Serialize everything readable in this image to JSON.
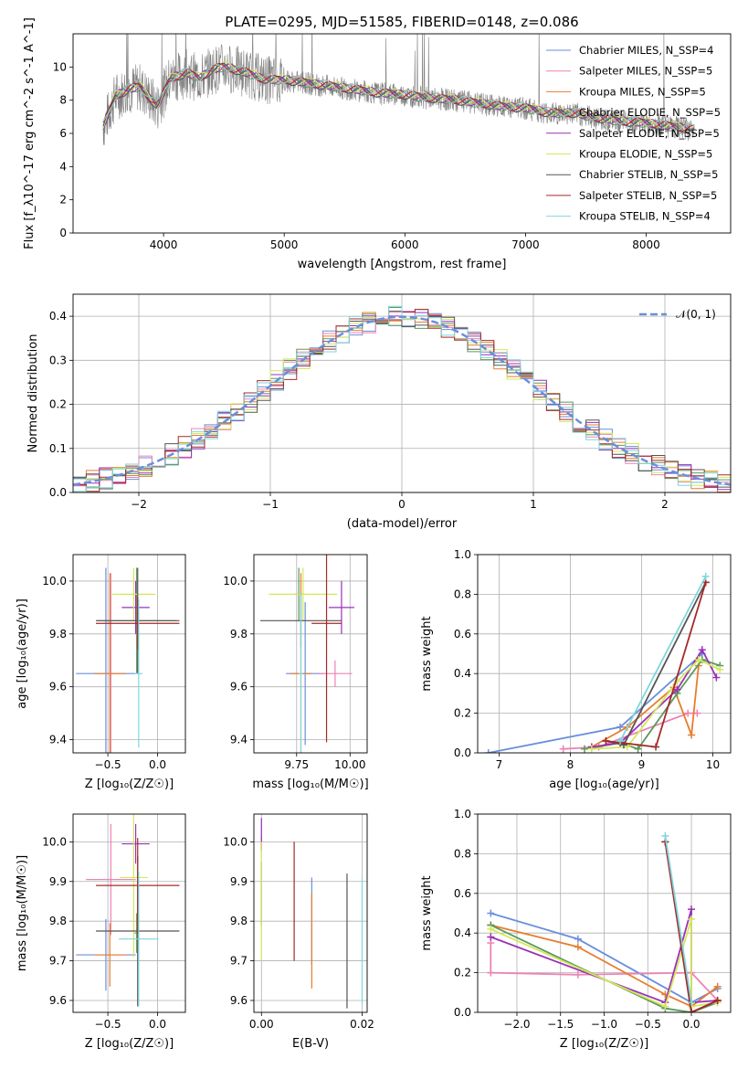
{
  "title": "PLATE=0295, MJD=51585, FIBERID=0148, z=0.086",
  "colors": {
    "chabrier_miles": "#6a8fdc",
    "salpeter_miles": "#ee82b4",
    "kroupa_miles": "#e77d2e",
    "chabrier_elodie": "#5b9a5b",
    "salpeter_elodie": "#9b30b8",
    "kroupa_elodie": "#d4e85a",
    "chabrier_stelib": "#555555",
    "salpeter_stelib": "#a52a2a",
    "kroupa_stelib": "#7fd6dc",
    "grid": "#b0b0b0",
    "data_spectrum": "#808080"
  },
  "chart_data": [
    {
      "id": "spectrum",
      "type": "line",
      "xlabel": "wavelength [Angstrom, rest frame]",
      "ylabel": "Flux [f_λ10^-17 erg cm^-2 s^-1 A^-1]",
      "xlim": [
        3250,
        8700
      ],
      "ylim": [
        0,
        12
      ],
      "xticks": [
        4000,
        5000,
        6000,
        7000,
        8000
      ],
      "yticks": [
        0,
        2,
        4,
        6,
        8,
        10
      ],
      "grid": false,
      "legend_position": "top-right",
      "data_trace": {
        "x": [
          3500,
          3600,
          3700,
          3800,
          3900,
          3950,
          4000,
          4050,
          4100,
          4200,
          4300,
          4400,
          4500,
          4600,
          4700,
          4800,
          4900,
          5000,
          5200,
          5400,
          5600,
          5800,
          6000,
          6200,
          6400,
          6600,
          6800,
          7000,
          7200,
          7400,
          7600,
          7800,
          8000,
          8200,
          8400
        ],
        "y": [
          6.4,
          8.2,
          8.6,
          8.8,
          8.0,
          7.6,
          8.4,
          9.2,
          9.4,
          9.6,
          9.3,
          9.8,
          10.0,
          9.8,
          9.6,
          9.3,
          9.2,
          9.2,
          9.0,
          8.8,
          8.6,
          8.4,
          8.3,
          8.1,
          8.0,
          7.8,
          7.6,
          7.5,
          7.2,
          7.2,
          6.9,
          6.7,
          6.6,
          6.4,
          6.2
        ]
      },
      "series": [
        {
          "name": "Chabrier MILES, N_SSP=4",
          "color_key": "chabrier_miles"
        },
        {
          "name": "Salpeter MILES, N_SSP=5",
          "color_key": "salpeter_miles"
        },
        {
          "name": "Kroupa MILES, N_SSP=5",
          "color_key": "kroupa_miles"
        },
        {
          "name": "Chabrier ELODIE, N_SSP=5",
          "color_key": "chabrier_elodie"
        },
        {
          "name": "Salpeter ELODIE, N_SSP=5",
          "color_key": "salpeter_elodie"
        },
        {
          "name": "Kroupa ELODIE, N_SSP=5",
          "color_key": "kroupa_elodie"
        },
        {
          "name": "Chabrier STELIB, N_SSP=5",
          "color_key": "chabrier_stelib"
        },
        {
          "name": "Salpeter STELIB, N_SSP=5",
          "color_key": "salpeter_stelib"
        },
        {
          "name": "Kroupa STELIB, N_SSP=4",
          "color_key": "kroupa_stelib"
        }
      ]
    },
    {
      "id": "residuals",
      "type": "line",
      "xlabel": "(data-model)/error",
      "ylabel": "Normed distribution",
      "xlim": [
        -2.5,
        2.5
      ],
      "ylim": [
        0,
        0.45
      ],
      "xticks": [
        -2,
        -1,
        0,
        1,
        2
      ],
      "yticks": [
        0.0,
        0.1,
        0.2,
        0.3,
        0.4
      ],
      "grid": true,
      "legend_position": "top-right",
      "legend": "𝒩(0, 1)",
      "bin_width": 0.1
    },
    {
      "id": "age_vs_Z",
      "type": "scatter",
      "xlabel": "Z [log₁₀(Z/Z☉)]",
      "ylabel": "age  [log₁₀(age/yr)]",
      "xlim": [
        -0.85,
        0.28
      ],
      "ylim": [
        9.35,
        10.1
      ],
      "xticks": [
        -0.5,
        0.0
      ],
      "yticks": [
        9.4,
        9.6,
        9.8,
        10.0
      ],
      "grid": true,
      "points": [
        {
          "color_key": "chabrier_miles",
          "x": -0.52,
          "y": 9.65,
          "xerr": 0.3,
          "yerr": 0.4
        },
        {
          "color_key": "salpeter_miles",
          "x": -0.47,
          "y": 9.65,
          "xerr": 0.04,
          "yerr": 0.38
        },
        {
          "color_key": "kroupa_miles",
          "x": -0.48,
          "y": 9.65,
          "xerr": 0.16,
          "yerr": 0.38
        },
        {
          "color_key": "chabrier_elodie",
          "x": -0.21,
          "y": 9.85,
          "xerr": 0.4,
          "yerr": 0.2
        },
        {
          "color_key": "salpeter_elodie",
          "x": -0.22,
          "y": 9.9,
          "xerr": 0.14,
          "yerr": 0.1
        },
        {
          "color_key": "kroupa_elodie",
          "x": -0.24,
          "y": 9.95,
          "xerr": 0.22,
          "yerr": 0.1
        },
        {
          "color_key": "chabrier_stelib",
          "x": -0.2,
          "y": 9.85,
          "xerr": 0.42,
          "yerr": 0.2
        },
        {
          "color_key": "salpeter_stelib",
          "x": -0.2,
          "y": 9.84,
          "xerr": 0.42,
          "yerr": 0.1
        },
        {
          "color_key": "kroupa_stelib",
          "x": -0.19,
          "y": 9.65,
          "xerr": 0.04,
          "yerr": 0.28
        }
      ]
    },
    {
      "id": "age_vs_mass",
      "type": "scatter",
      "xlabel": "mass [log₁₀(M/M☉)]",
      "ylabel": "",
      "xlim": [
        9.55,
        10.08
      ],
      "ylim": [
        9.35,
        10.1
      ],
      "xticks": [
        9.75,
        10.0
      ],
      "yticks": [
        9.4,
        9.6,
        9.8,
        10.0
      ],
      "grid": true,
      "points": [
        {
          "color_key": "chabrier_miles",
          "x": 9.79,
          "y": 9.65,
          "xerr": 0.09,
          "yerr": 0.27
        },
        {
          "color_key": "salpeter_miles",
          "x": 9.93,
          "y": 9.65,
          "xerr": 0.08,
          "yerr": 0.05
        },
        {
          "color_key": "kroupa_miles",
          "x": 9.77,
          "y": 9.65,
          "xerr": 0.05,
          "yerr": 0.38
        },
        {
          "color_key": "chabrier_elodie",
          "x": 9.76,
          "y": 9.95,
          "xerr": 0.02,
          "yerr": 0.1
        },
        {
          "color_key": "salpeter_elodie",
          "x": 9.96,
          "y": 9.9,
          "xerr": 0.06,
          "yerr": 0.1
        },
        {
          "color_key": "kroupa_elodie",
          "x": 9.78,
          "y": 9.95,
          "xerr": 0.16,
          "yerr": 0.1
        },
        {
          "color_key": "chabrier_stelib",
          "x": 9.77,
          "y": 9.85,
          "xerr": 0.19,
          "yerr": 0.1
        },
        {
          "color_key": "salpeter_stelib",
          "x": 9.89,
          "y": 9.84,
          "xerr": 0.07,
          "yerr": 0.45
        },
        {
          "color_key": "kroupa_stelib",
          "x": 9.77,
          "y": 9.65,
          "xerr": 0.01,
          "yerr": 0.3
        }
      ]
    },
    {
      "id": "weight_vs_age",
      "type": "line",
      "xlabel": "age  [log₁₀(age/yr)]",
      "ylabel": "mass weight",
      "xlim": [
        6.7,
        10.25
      ],
      "ylim": [
        0,
        1.0
      ],
      "xticks": [
        7,
        8,
        9,
        10
      ],
      "yticks": [
        0.0,
        0.2,
        0.4,
        0.6,
        0.8,
        1.0
      ],
      "grid": true,
      "series": [
        {
          "color_key": "chabrier_miles",
          "x": [
            6.85,
            8.7,
            9.85
          ],
          "y": [
            0.0,
            0.13,
            0.5
          ]
        },
        {
          "color_key": "salpeter_miles",
          "x": [
            7.9,
            8.4,
            9.65,
            9.78
          ],
          "y": [
            0.02,
            0.03,
            0.2,
            0.2
          ]
        },
        {
          "color_key": "kroupa_miles",
          "x": [
            8.3,
            8.8,
            9.45,
            9.7,
            9.8
          ],
          "y": [
            0.03,
            0.13,
            0.33,
            0.09,
            0.44
          ]
        },
        {
          "color_key": "chabrier_elodie",
          "x": [
            8.2,
            8.7,
            8.95,
            9.5,
            9.85,
            10.1
          ],
          "y": [
            0.02,
            0.05,
            0.02,
            0.3,
            0.47,
            0.44
          ]
        },
        {
          "color_key": "salpeter_elodie",
          "x": [
            8.3,
            8.7,
            9.5,
            9.85,
            10.05
          ],
          "y": [
            0.03,
            0.05,
            0.32,
            0.52,
            0.38
          ]
        },
        {
          "color_key": "kroupa_elodie",
          "x": [
            8.3,
            8.8,
            9.5,
            9.8,
            10.1
          ],
          "y": [
            0.02,
            0.03,
            0.36,
            0.47,
            0.42
          ]
        },
        {
          "color_key": "chabrier_stelib",
          "x": [
            8.5,
            8.75,
            9.9
          ],
          "y": [
            0.06,
            0.04,
            0.86
          ]
        },
        {
          "color_key": "salpeter_stelib",
          "x": [
            8.5,
            9.2,
            9.9
          ],
          "y": [
            0.06,
            0.03,
            0.86
          ]
        },
        {
          "color_key": "kroupa_stelib",
          "x": [
            8.7,
            9.9
          ],
          "y": [
            0.06,
            0.89
          ]
        }
      ]
    },
    {
      "id": "mass_vs_Z",
      "type": "scatter",
      "xlabel": "Z [log₁₀(Z/Z☉)]",
      "ylabel": "mass [log₁₀(M/M☉)]",
      "xlim": [
        -0.85,
        0.28
      ],
      "ylim": [
        9.57,
        10.07
      ],
      "xticks": [
        -0.5,
        0.0
      ],
      "yticks": [
        9.6,
        9.7,
        9.8,
        9.9,
        10.0
      ],
      "grid": true,
      "points": [
        {
          "color_key": "chabrier_miles",
          "x": -0.52,
          "y": 9.715,
          "xerr": 0.3,
          "yerr": 0.09
        },
        {
          "color_key": "salpeter_miles",
          "x": -0.47,
          "y": 9.905,
          "xerr": 0.25,
          "yerr": 0.14
        },
        {
          "color_key": "kroupa_miles",
          "x": -0.48,
          "y": 9.715,
          "xerr": 0.16,
          "yerr": 0.08
        },
        {
          "color_key": "chabrier_elodie",
          "x": -0.21,
          "y": 9.77,
          "xerr": 0.02,
          "yerr": 0.05
        },
        {
          "color_key": "salpeter_elodie",
          "x": -0.22,
          "y": 9.995,
          "xerr": 0.14,
          "yerr": 0.05
        },
        {
          "color_key": "kroupa_elodie",
          "x": -0.24,
          "y": 9.91,
          "xerr": 0.14,
          "yerr": 0.2
        },
        {
          "color_key": "chabrier_stelib",
          "x": -0.2,
          "y": 9.775,
          "xerr": 0.42,
          "yerr": 0.19
        },
        {
          "color_key": "salpeter_stelib",
          "x": -0.2,
          "y": 9.89,
          "xerr": 0.42,
          "yerr": 0.12
        },
        {
          "color_key": "kroupa_stelib",
          "x": -0.19,
          "y": 9.755,
          "xerr": 0.2,
          "yerr": 0.17
        }
      ]
    },
    {
      "id": "mass_vs_EBV",
      "type": "scatter",
      "xlabel": "E(B-V)",
      "ylabel": "",
      "xlim": [
        -0.0015,
        0.021
      ],
      "ylim": [
        9.57,
        10.07
      ],
      "xticks": [
        0.0,
        0.02
      ],
      "yticks": [
        9.6,
        9.7,
        9.8,
        9.9,
        10.0
      ],
      "grid": true,
      "points": [
        {
          "color_key": "chabrier_miles",
          "x": 0.01,
          "y": 9.8,
          "yerr": 0.11
        },
        {
          "color_key": "salpeter_miles",
          "x": 0.0,
          "y": 9.995,
          "yerr": 0.02
        },
        {
          "color_key": "kroupa_miles",
          "x": 0.01,
          "y": 9.75,
          "yerr": 0.12
        },
        {
          "color_key": "chabrier_elodie",
          "x": 0.0,
          "y": 9.87,
          "yerr": 0.08
        },
        {
          "color_key": "salpeter_elodie",
          "x": 0.0,
          "y": 10.02,
          "yerr": 0.04
        },
        {
          "color_key": "kroupa_elodie",
          "x": 0.0,
          "y": 9.85,
          "yerr": 0.15
        },
        {
          "color_key": "chabrier_stelib",
          "x": 0.017,
          "y": 9.75,
          "yerr": 0.17
        },
        {
          "color_key": "salpeter_stelib",
          "x": 0.0065,
          "y": 9.85,
          "yerr": 0.15
        },
        {
          "color_key": "kroupa_stelib",
          "x": 0.02,
          "y": 9.75,
          "yerr": 0.16
        }
      ]
    },
    {
      "id": "weight_vs_Z",
      "type": "line",
      "xlabel": "Z [log₁₀(Z/Z☉)]",
      "ylabel": "mass weight",
      "xlim": [
        -2.45,
        0.45
      ],
      "ylim": [
        0,
        1.0
      ],
      "xticks": [
        -2.0,
        -1.5,
        -1.0,
        -0.5,
        0.0
      ],
      "yticks": [
        0.0,
        0.2,
        0.4,
        0.6,
        0.8,
        1.0
      ],
      "grid": true,
      "series": [
        {
          "color_key": "chabrier_miles",
          "x": [
            -2.3,
            -1.3,
            0.0,
            0.3
          ],
          "y": [
            0.5,
            0.37,
            0.05,
            0.12
          ]
        },
        {
          "color_key": "salpeter_miles",
          "x": [
            -2.3,
            -2.3,
            -1.3,
            0.0,
            0.3
          ],
          "y": [
            0.35,
            0.2,
            0.19,
            0.2,
            0.06
          ]
        },
        {
          "color_key": "kroupa_miles",
          "x": [
            -2.3,
            -1.3,
            -0.3,
            0.0,
            0.3
          ],
          "y": [
            0.44,
            0.33,
            0.09,
            0.03,
            0.13
          ]
        },
        {
          "color_key": "chabrier_elodie",
          "x": [
            -2.3,
            -0.3,
            0.0,
            0.3
          ],
          "y": [
            0.44,
            0.02,
            0.0,
            0.05
          ]
        },
        {
          "color_key": "salpeter_elodie",
          "x": [
            -2.3,
            -0.3,
            0.0,
            0.0,
            0.3
          ],
          "y": [
            0.38,
            0.05,
            0.52,
            0.05,
            0.06
          ]
        },
        {
          "color_key": "kroupa_elodie",
          "x": [
            -2.3,
            -0.3,
            0.0,
            0.0,
            0.3
          ],
          "y": [
            0.42,
            0.03,
            0.47,
            0.03,
            0.05
          ]
        },
        {
          "color_key": "chabrier_stelib",
          "x": [
            -0.3,
            0.0,
            0.3
          ],
          "y": [
            0.86,
            0.0,
            0.06
          ]
        },
        {
          "color_key": "salpeter_stelib",
          "x": [
            -0.3,
            0.0,
            0.3
          ],
          "y": [
            0.86,
            0.0,
            0.06
          ]
        },
        {
          "color_key": "kroupa_stelib",
          "x": [
            -0.3,
            0.0
          ],
          "y": [
            0.89,
            0.05
          ]
        }
      ]
    }
  ]
}
